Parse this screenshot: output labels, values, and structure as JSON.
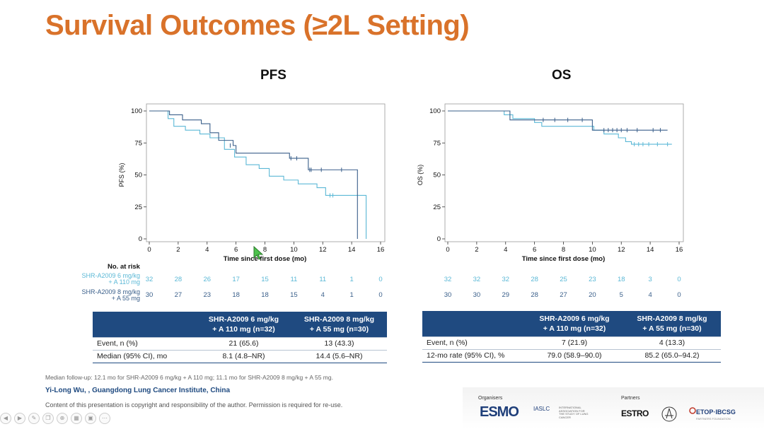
{
  "slide_title": "Survival Outcomes (≥2L Setting)",
  "colors": {
    "title": "#d9722a",
    "arm1": "#5bb8d6",
    "arm2": "#3a5f8a",
    "table_header": "#1f4a80"
  },
  "chart_data": [
    {
      "type": "line",
      "subtype": "kaplan-meier",
      "title": "PFS",
      "xlabel": "Time since first dose (mo)",
      "ylabel": "PFS (%)",
      "xlim": [
        0,
        16
      ],
      "ylim": [
        0,
        100
      ],
      "xticks": [
        "0",
        "2",
        "4",
        "6",
        "8",
        "10",
        "12",
        "14",
        "16"
      ],
      "yticks": [
        "0",
        "25",
        "50",
        "75",
        "100"
      ],
      "series": [
        {
          "name": "SHR-A2009 6 mg/kg + A 110 mg",
          "color": "#5bb8d6",
          "steps": [
            [
              0,
              100
            ],
            [
              1.2,
              100
            ],
            [
              1.3,
              94
            ],
            [
              1.7,
              88
            ],
            [
              2.5,
              85
            ],
            [
              3.5,
              82
            ],
            [
              4.2,
              79
            ],
            [
              5.2,
              70
            ],
            [
              5.9,
              64
            ],
            [
              6.7,
              58
            ],
            [
              7.6,
              55
            ],
            [
              8.3,
              49
            ],
            [
              9.3,
              46
            ],
            [
              10.3,
              43
            ],
            [
              11.6,
              40
            ],
            [
              12.2,
              34
            ],
            [
              12.6,
              34
            ],
            [
              14.4,
              34
            ],
            [
              15,
              34
            ],
            [
              15,
              0
            ]
          ],
          "censors": [
            [
              12.5,
              34
            ],
            [
              12.7,
              34
            ]
          ]
        },
        {
          "name": "SHR-A2009 8 mg/kg + A 55 mg",
          "color": "#3a5f8a",
          "steps": [
            [
              0,
              100
            ],
            [
              1.3,
              100
            ],
            [
              1.4,
              97
            ],
            [
              2.3,
              93
            ],
            [
              3.6,
              90
            ],
            [
              4.2,
              83
            ],
            [
              4.8,
              77
            ],
            [
              5.8,
              73
            ],
            [
              6.0,
              67
            ],
            [
              8.0,
              67
            ],
            [
              9.6,
              67
            ],
            [
              9.7,
              63
            ],
            [
              10.9,
              63
            ],
            [
              11.0,
              54
            ],
            [
              12.3,
              54
            ],
            [
              14.4,
              54
            ],
            [
              14.4,
              0
            ]
          ],
          "censors": [
            [
              5.6,
              73
            ],
            [
              9.8,
              63
            ],
            [
              10.2,
              63
            ],
            [
              11.1,
              54
            ],
            [
              11.2,
              54
            ],
            [
              11.9,
              54
            ],
            [
              13.3,
              54
            ]
          ]
        }
      ],
      "risk_table": {
        "title": "No. at risk",
        "rows": [
          {
            "label_line1": "SHR-A2009 6 mg/kg",
            "label_line2": "+ A 110 mg",
            "values": [
              "32",
              "28",
              "26",
              "17",
              "15",
              "11",
              "11",
              "1",
              "0"
            ]
          },
          {
            "label_line1": "SHR-A2009 8 mg/kg",
            "label_line2": "+ A 55 mg",
            "values": [
              "30",
              "27",
              "23",
              "18",
              "18",
              "15",
              "4",
              "1",
              "0"
            ]
          }
        ]
      }
    },
    {
      "type": "line",
      "subtype": "kaplan-meier",
      "title": "OS",
      "xlabel": "Time since first dose (mo)",
      "ylabel": "OS (%)",
      "xlim": [
        0,
        16
      ],
      "ylim": [
        0,
        100
      ],
      "xticks": [
        "0",
        "2",
        "4",
        "6",
        "8",
        "10",
        "12",
        "14",
        "16"
      ],
      "yticks": [
        "0",
        "25",
        "50",
        "75",
        "100"
      ],
      "series": [
        {
          "name": "SHR-A2009 6 mg/kg + A 110 mg",
          "color": "#5bb8d6",
          "steps": [
            [
              0,
              100
            ],
            [
              3.8,
              100
            ],
            [
              3.9,
              97
            ],
            [
              4.5,
              94
            ],
            [
              6.0,
              91
            ],
            [
              6.5,
              88
            ],
            [
              10.0,
              88
            ],
            [
              10.1,
              85
            ],
            [
              10.8,
              82
            ],
            [
              11.8,
              79
            ],
            [
              12.3,
              76
            ],
            [
              12.7,
              74
            ],
            [
              15.5,
              74
            ]
          ],
          "censors": [
            [
              12.9,
              74
            ],
            [
              13.2,
              74
            ],
            [
              13.5,
              74
            ],
            [
              13.9,
              74
            ],
            [
              14.5,
              74
            ],
            [
              15.2,
              74
            ]
          ]
        },
        {
          "name": "SHR-A2009 8 mg/kg + A 55 mg",
          "color": "#3a5f8a",
          "steps": [
            [
              0,
              100
            ],
            [
              4.2,
              100
            ],
            [
              4.3,
              93
            ],
            [
              9.9,
              93
            ],
            [
              10.0,
              85
            ],
            [
              15.2,
              85
            ]
          ],
          "censors": [
            [
              6.6,
              93
            ],
            [
              7.4,
              93
            ],
            [
              8.3,
              93
            ],
            [
              9.3,
              93
            ],
            [
              10.8,
              85
            ],
            [
              11.1,
              85
            ],
            [
              11.4,
              85
            ],
            [
              11.7,
              85
            ],
            [
              12.0,
              85
            ],
            [
              12.4,
              85
            ],
            [
              13.1,
              85
            ],
            [
              14.2,
              85
            ],
            [
              14.7,
              85
            ]
          ]
        }
      ],
      "risk_table": {
        "rows": [
          {
            "values": [
              "32",
              "32",
              "32",
              "28",
              "25",
              "23",
              "18",
              "3",
              "0"
            ]
          },
          {
            "values": [
              "30",
              "30",
              "29",
              "28",
              "27",
              "20",
              "5",
              "4",
              "0"
            ]
          }
        ]
      }
    }
  ],
  "pfs_table": {
    "header": [
      "",
      "SHR-A2009 6 mg/kg + A 110 mg (n=32)",
      "SHR-A2009 8 mg/kg + A 55 mg (n=30)"
    ],
    "header_line1": [
      "SHR-A2009 6 mg/kg",
      "SHR-A2009 8 mg/kg"
    ],
    "header_line2": [
      "+ A 110 mg (n=32)",
      "+ A 55 mg (n=30)"
    ],
    "rows": [
      {
        "label": "Event, n (%)",
        "v1": "21 (65.6)",
        "v2": "13 (43.3)"
      },
      {
        "label": "Median (95% CI), mo",
        "v1": "8.1 (4.8–NR)",
        "v2": "14.4 (5.6–NR)"
      }
    ]
  },
  "os_table": {
    "header_line1": [
      "SHR-A2009 6 mg/kg",
      "SHR-A2009 8 mg/kg"
    ],
    "header_line2": [
      "+ A 110 mg (n=32)",
      "+ A 55 mg (n=30)"
    ],
    "rows": [
      {
        "label": "Event, n (%)",
        "v1": "7 (21.9)",
        "v2": "4 (13.3)"
      },
      {
        "label": "12-mo rate (95% CI), %",
        "v1": "79.0 (58.9–90.0)",
        "v2": "85.2 (65.0–94.2)"
      }
    ]
  },
  "footnote": "Median follow-up: 12.1 mo for SHR-A2009 6 mg/kg + A 110 mg; 11.1 mo for SHR-A2009 8 mg/kg + A 55 mg.",
  "author": "Yi-Long Wu, , Guangdong Lung Cancer Institute, China",
  "copyright": "Content of this presentation is copyright and responsibility of the author. Permission is required for re-use.",
  "logos": {
    "organisers_label": "Organisers",
    "partners_label": "Partners",
    "esmo": "ESMO",
    "iaslc": "IASLC",
    "iaslc_sub": "INTERNATIONAL ASSOCIATION FOR THE STUDY OF LUNG CANCER",
    "estro": "ESTRO",
    "etop": "ETOP·IBCSG",
    "etop_sub": "PARTNERS FOUNDATION"
  }
}
